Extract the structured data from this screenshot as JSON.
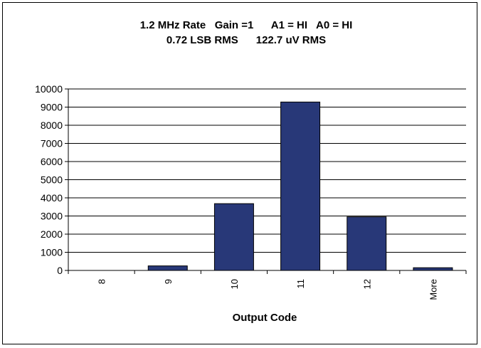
{
  "chart_data": {
    "type": "bar",
    "title": "1.2 MHz Rate   Gain =1      A1 = HI   A0 = HI",
    "subtitle": "0.72 LSB RMS      122.7 uV RMS",
    "xlabel": "Output Code",
    "ylabel": "",
    "categories": [
      "8",
      "9",
      "10",
      "11",
      "12",
      "More"
    ],
    "values": [
      0,
      250,
      3680,
      9280,
      2950,
      150
    ],
    "ylim": [
      0,
      10000
    ],
    "yticks": [
      0,
      1000,
      2000,
      3000,
      4000,
      5000,
      6000,
      7000,
      8000,
      9000,
      10000
    ],
    "grid": true,
    "legend": "none",
    "bar_color": "#283878"
  }
}
